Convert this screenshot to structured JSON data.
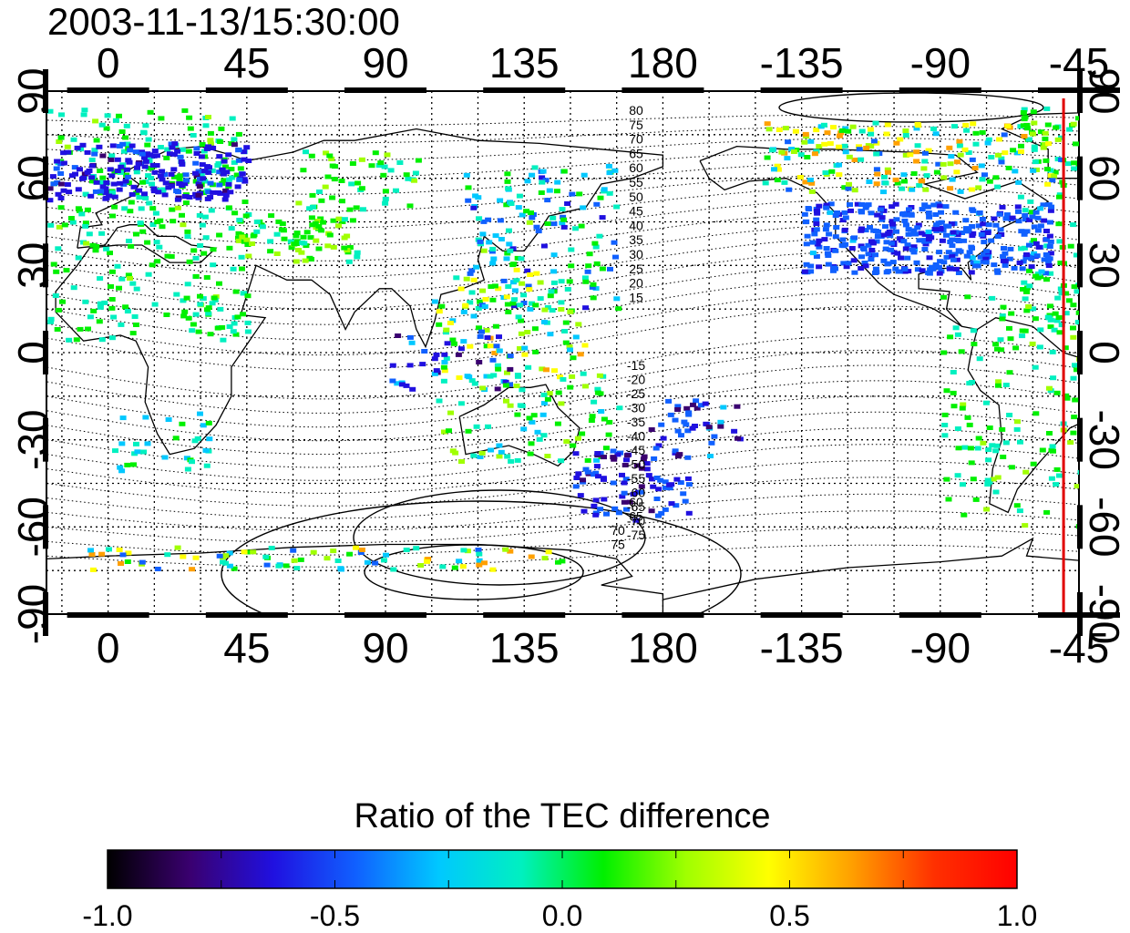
{
  "map": {
    "timestamp": "2003-11-13/15:30:00",
    "lon_ticks_top": [
      "0",
      "45",
      "90",
      "135",
      "180",
      "-135",
      "-90",
      "-45"
    ],
    "lon_ticks_bottom": [
      "0",
      "45",
      "90",
      "135",
      "180",
      "-135",
      "-90",
      "-45"
    ],
    "lat_ticks_left": [
      "90",
      "60",
      "30",
      "0",
      "-30",
      "-60",
      "-90"
    ],
    "lat_ticks_right": [
      "90",
      "60",
      "30",
      "0",
      "-30",
      "-60",
      "-90"
    ],
    "lon_range": [
      -20,
      315
    ],
    "lat_range": [
      -90,
      90
    ],
    "grid": true,
    "marker_line": {
      "longitude": -50,
      "color": "#e00000"
    },
    "contour_labels_north": [
      "80",
      "75",
      "70",
      "65",
      "60",
      "55",
      "50",
      "45",
      "40",
      "35",
      "30",
      "25",
      "20",
      "15"
    ],
    "contour_labels_south": [
      "-15",
      "-20",
      "-25",
      "-30",
      "-35",
      "-40",
      "-45",
      "-50",
      "-55",
      "-60",
      "-65",
      "-70",
      "-75"
    ],
    "contour_labels_polar": [
      "60",
      "65",
      "70",
      "75"
    ]
  },
  "colorbar": {
    "title": "Ratio of the TEC difference",
    "ticks": [
      "-1.0",
      "-0.5",
      "0.0",
      "0.5",
      "1.0"
    ],
    "range": [
      -1.0,
      1.0
    ],
    "colormap": [
      "#000000",
      "#3a0070",
      "#2010e0",
      "#1060ff",
      "#00c8ff",
      "#00f0c0",
      "#00f000",
      "#a0ff00",
      "#ffff00",
      "#ffa000",
      "#ff3000",
      "#ff0000"
    ]
  }
}
